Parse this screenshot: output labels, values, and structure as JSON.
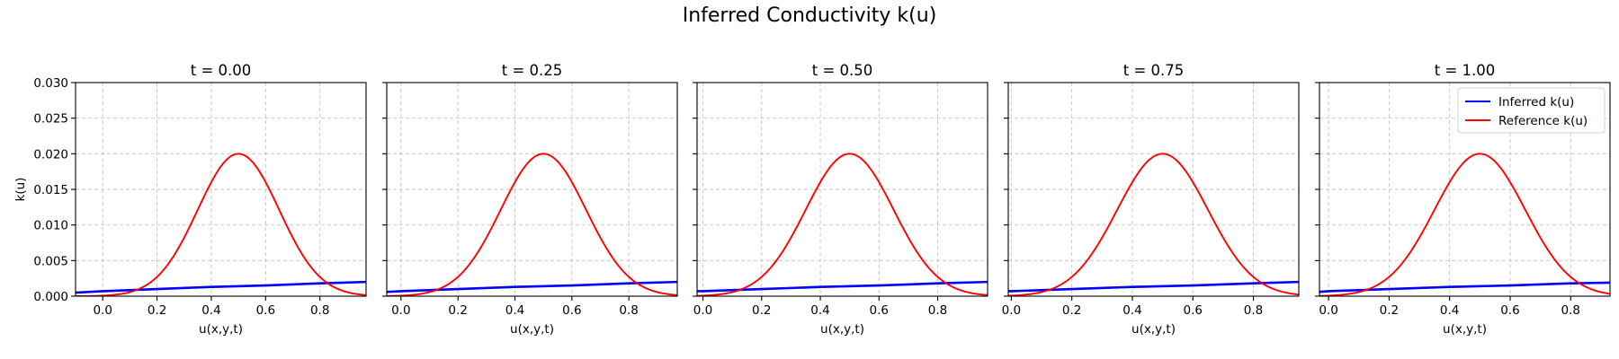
{
  "figure": {
    "title": "Inferred Conductivity k(u)"
  },
  "legend": {
    "items": [
      {
        "label": "Inferred k(u)",
        "color": "#0000ff"
      },
      {
        "label": "Reference k(u)",
        "color": "#ff0000"
      }
    ]
  },
  "chart_data": [
    {
      "type": "line",
      "title": "t = 0.00",
      "xlabel": "u(x,y,t)",
      "ylabel": "k(u)",
      "xlim": [
        -0.1,
        0.97
      ],
      "ylim": [
        0,
        0.03
      ],
      "xticks": [
        0.0,
        0.2,
        0.4,
        0.6,
        0.8
      ],
      "xtick_labels": [
        "0.0",
        "0.2",
        "0.4",
        "0.6",
        "0.8"
      ],
      "yticks": [
        0.0,
        0.005,
        0.01,
        0.015,
        0.02,
        0.025,
        0.03
      ],
      "ytick_labels": [
        "0.000",
        "0.005",
        "0.010",
        "0.015",
        "0.020",
        "0.025",
        "0.030"
      ],
      "grid": true,
      "series": [
        {
          "name": "Inferred k(u)",
          "color": "#0000ff",
          "x": [
            -0.1,
            0.0,
            0.2,
            0.4,
            0.6,
            0.8,
            0.97
          ],
          "y": [
            0.0005,
            0.0007,
            0.001,
            0.0013,
            0.0015,
            0.0018,
            0.002
          ]
        },
        {
          "name": "Reference k(u)",
          "color": "#ff0000",
          "x": [
            -0.1,
            0.0,
            0.1,
            0.2,
            0.3,
            0.35,
            0.4,
            0.45,
            0.5,
            0.55,
            0.6,
            0.65,
            0.7,
            0.8,
            0.9,
            0.97
          ],
          "y": [
            0.0,
            0.0001,
            0.0009,
            0.0048,
            0.0114,
            0.0151,
            0.0181,
            0.0197,
            0.02,
            0.0197,
            0.0181,
            0.0151,
            0.0114,
            0.0048,
            0.0014,
            0.0004
          ]
        }
      ]
    },
    {
      "type": "line",
      "title": "t = 0.25",
      "xlabel": "u(x,y,t)",
      "ylabel": "",
      "xlim": [
        -0.05,
        0.97
      ],
      "ylim": [
        0,
        0.03
      ],
      "xticks": [
        0.0,
        0.2,
        0.4,
        0.6,
        0.8
      ],
      "xtick_labels": [
        "0.0",
        "0.2",
        "0.4",
        "0.6",
        "0.8"
      ],
      "yticks": [
        0.0,
        0.005,
        0.01,
        0.015,
        0.02,
        0.025,
        0.03
      ],
      "ytick_labels": [],
      "grid": true,
      "series": [
        {
          "name": "Inferred k(u)",
          "color": "#0000ff",
          "x": [
            -0.05,
            0.0,
            0.2,
            0.4,
            0.6,
            0.8,
            0.97
          ],
          "y": [
            0.0006,
            0.0007,
            0.001,
            0.0013,
            0.0015,
            0.0018,
            0.002
          ]
        },
        {
          "name": "Reference k(u)",
          "color": "#ff0000",
          "x": [
            -0.05,
            0.0,
            0.1,
            0.2,
            0.3,
            0.35,
            0.4,
            0.45,
            0.5,
            0.55,
            0.6,
            0.65,
            0.7,
            0.8,
            0.9,
            0.97
          ],
          "y": [
            0.0,
            0.0001,
            0.0009,
            0.0048,
            0.0114,
            0.0151,
            0.0181,
            0.0197,
            0.02,
            0.0197,
            0.0181,
            0.0151,
            0.0114,
            0.0048,
            0.0014,
            0.0004
          ]
        }
      ]
    },
    {
      "type": "line",
      "title": "t = 0.50",
      "xlabel": "u(x,y,t)",
      "ylabel": "",
      "xlim": [
        -0.02,
        0.97
      ],
      "ylim": [
        0,
        0.03
      ],
      "xticks": [
        0.0,
        0.2,
        0.4,
        0.6,
        0.8
      ],
      "xtick_labels": [
        "0.0",
        "0.2",
        "0.4",
        "0.6",
        "0.8"
      ],
      "yticks": [
        0.0,
        0.005,
        0.01,
        0.015,
        0.02,
        0.025,
        0.03
      ],
      "ytick_labels": [],
      "grid": true,
      "series": [
        {
          "name": "Inferred k(u)",
          "color": "#0000ff",
          "x": [
            -0.02,
            0.0,
            0.2,
            0.4,
            0.6,
            0.8,
            0.97
          ],
          "y": [
            0.0007,
            0.0007,
            0.001,
            0.0013,
            0.0015,
            0.0018,
            0.002
          ]
        },
        {
          "name": "Reference k(u)",
          "color": "#ff0000",
          "x": [
            -0.02,
            0.0,
            0.1,
            0.2,
            0.3,
            0.35,
            0.4,
            0.45,
            0.5,
            0.55,
            0.6,
            0.65,
            0.7,
            0.8,
            0.9,
            0.97
          ],
          "y": [
            0.0,
            0.0001,
            0.0009,
            0.0048,
            0.0114,
            0.0151,
            0.0181,
            0.0197,
            0.02,
            0.0197,
            0.0181,
            0.0151,
            0.0114,
            0.0048,
            0.0014,
            0.0004
          ]
        }
      ]
    },
    {
      "type": "line",
      "title": "t = 0.75",
      "xlabel": "u(x,y,t)",
      "ylabel": "",
      "xlim": [
        -0.01,
        0.95
      ],
      "ylim": [
        0,
        0.03
      ],
      "xticks": [
        0.0,
        0.2,
        0.4,
        0.6,
        0.8
      ],
      "xtick_labels": [
        "0.0",
        "0.2",
        "0.4",
        "0.6",
        "0.8"
      ],
      "yticks": [
        0.0,
        0.005,
        0.01,
        0.015,
        0.02,
        0.025,
        0.03
      ],
      "ytick_labels": [],
      "grid": true,
      "series": [
        {
          "name": "Inferred k(u)",
          "color": "#0000ff",
          "x": [
            -0.01,
            0.0,
            0.2,
            0.4,
            0.6,
            0.8,
            0.95
          ],
          "y": [
            0.0007,
            0.0007,
            0.001,
            0.0013,
            0.0015,
            0.0018,
            0.002
          ]
        },
        {
          "name": "Reference k(u)",
          "color": "#ff0000",
          "x": [
            -0.01,
            0.0,
            0.1,
            0.2,
            0.3,
            0.35,
            0.4,
            0.45,
            0.5,
            0.55,
            0.6,
            0.65,
            0.7,
            0.8,
            0.9,
            0.95
          ],
          "y": [
            0.0,
            0.0001,
            0.0009,
            0.0048,
            0.0114,
            0.0151,
            0.0181,
            0.0197,
            0.02,
            0.0197,
            0.0181,
            0.0151,
            0.0114,
            0.0048,
            0.0014,
            0.0006
          ]
        }
      ]
    },
    {
      "type": "line",
      "title": "t = 1.00",
      "xlabel": "u(x,y,t)",
      "ylabel": "",
      "xlim": [
        -0.03,
        0.93
      ],
      "ylim": [
        0,
        0.03
      ],
      "xticks": [
        0.0,
        0.2,
        0.4,
        0.6,
        0.8
      ],
      "xtick_labels": [
        "0.0",
        "0.2",
        "0.4",
        "0.6",
        "0.8"
      ],
      "yticks": [
        0.0,
        0.005,
        0.01,
        0.015,
        0.02,
        0.025,
        0.03
      ],
      "ytick_labels": [],
      "grid": true,
      "legend": "top-right",
      "series": [
        {
          "name": "Inferred k(u)",
          "color": "#0000ff",
          "x": [
            -0.03,
            0.0,
            0.2,
            0.4,
            0.6,
            0.8,
            0.93
          ],
          "y": [
            0.0006,
            0.0007,
            0.001,
            0.0013,
            0.0015,
            0.0018,
            0.0019
          ]
        },
        {
          "name": "Reference k(u)",
          "color": "#ff0000",
          "x": [
            -0.03,
            0.0,
            0.1,
            0.2,
            0.3,
            0.35,
            0.4,
            0.45,
            0.5,
            0.55,
            0.6,
            0.65,
            0.7,
            0.8,
            0.9,
            0.93
          ],
          "y": [
            0.0,
            0.0001,
            0.0009,
            0.0048,
            0.0114,
            0.0151,
            0.0181,
            0.0197,
            0.02,
            0.0197,
            0.0181,
            0.0151,
            0.0114,
            0.0048,
            0.0014,
            0.0008
          ]
        }
      ]
    }
  ]
}
